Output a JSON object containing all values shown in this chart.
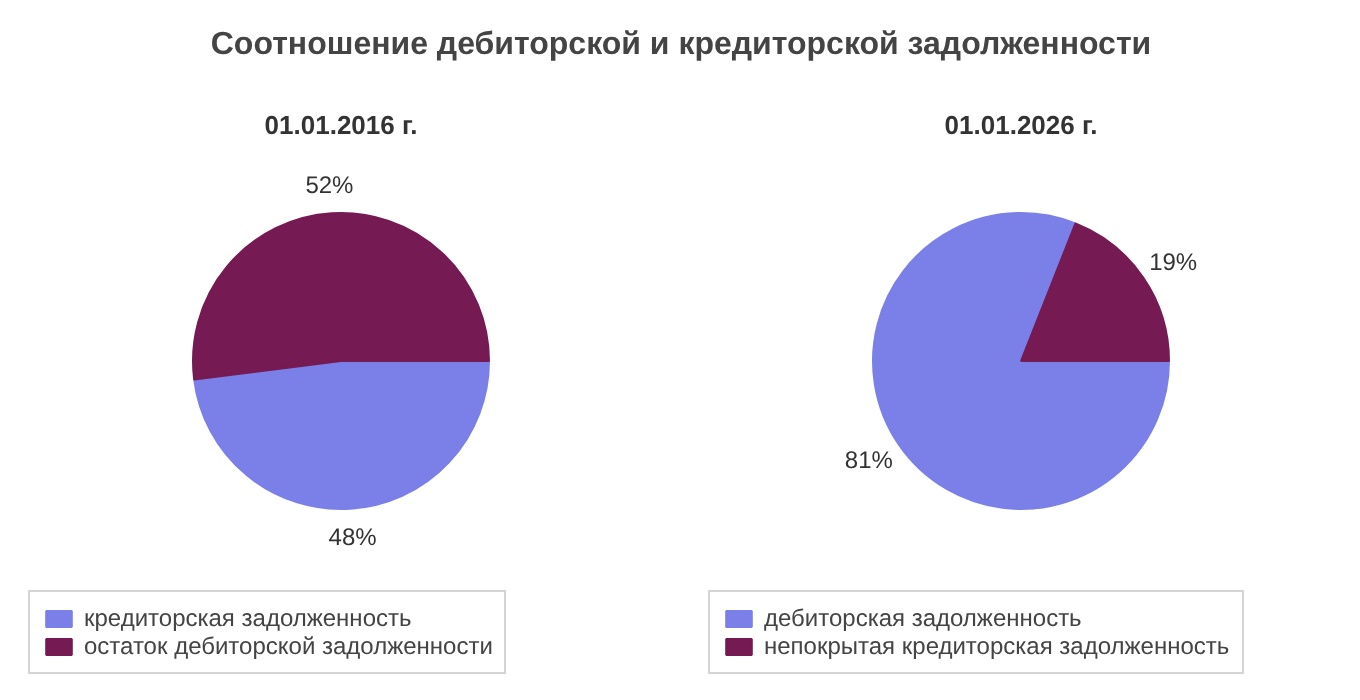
{
  "chart_data": [
    {
      "type": "pie",
      "title": "Соотношение дебиторской и кредиторской задолженности",
      "subtitle": "01.01.2016 г.",
      "categories": [
        "кредиторская задолженность",
        "остаток дебиторской задолженности"
      ],
      "values": [
        48,
        52
      ],
      "colors": [
        "#7b7fe8",
        "#751a52"
      ],
      "value_labels": [
        "48%",
        "52%"
      ],
      "legend": "bottom"
    },
    {
      "type": "pie",
      "subtitle": "01.01.2026 г.",
      "categories": [
        "дебиторская задолженность",
        "непокрытая кредиторская задолженность"
      ],
      "values": [
        81,
        19
      ],
      "colors": [
        "#7b7fe8",
        "#751a52"
      ],
      "value_labels": [
        "81%",
        "19%"
      ],
      "legend": "bottom"
    }
  ]
}
